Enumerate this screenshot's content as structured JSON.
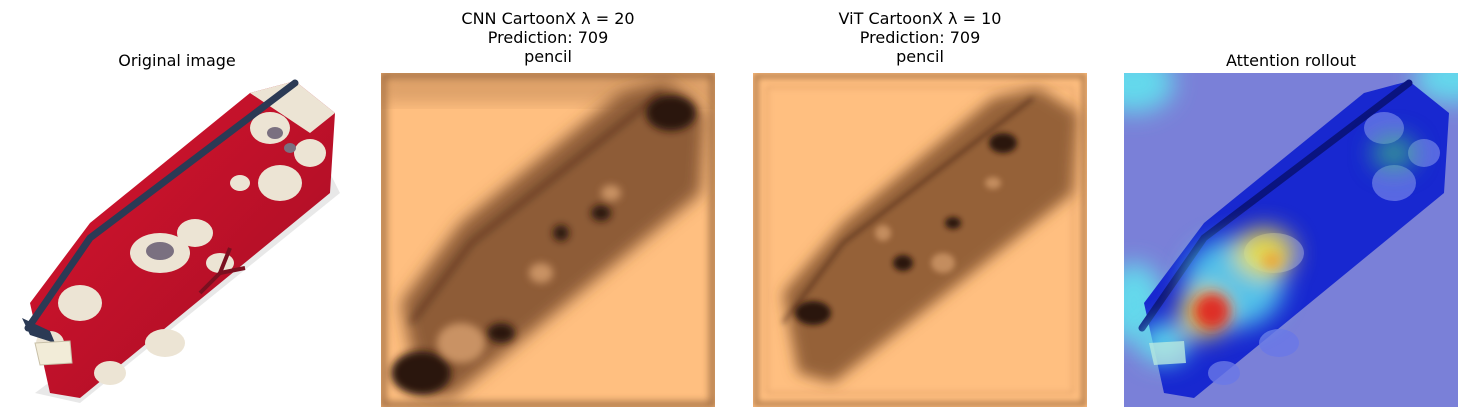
{
  "panels": [
    {
      "title_lines": [
        "Original image"
      ],
      "kind": "photo"
    },
    {
      "title_lines": [
        "CNN CartoonX λ = 20",
        "Prediction: 709",
        "pencil"
      ],
      "kind": "cartoonx"
    },
    {
      "title_lines": [
        "ViT CartoonX λ = 10",
        "Prediction: 709",
        "pencil"
      ],
      "kind": "cartoonx"
    },
    {
      "title_lines": [
        "Attention rollout"
      ],
      "kind": "heatmap"
    }
  ],
  "colors": {
    "bag_red": "#c8102e",
    "zipper_navy": "#2b3a55",
    "flower_cream": "#ece4d4",
    "copper_light": "#ffbf80",
    "copper_dark": "#3a2010",
    "heat_blue": "#1e2ad6",
    "heat_red": "#e02020",
    "heat_yellow": "#f2e040",
    "heat_cyan": "#60e8f0"
  }
}
